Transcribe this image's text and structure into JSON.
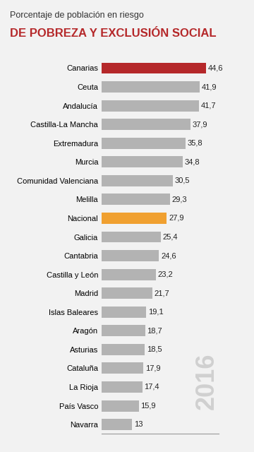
{
  "chart_data": {
    "type": "bar",
    "orientation": "horizontal",
    "subtitle": "Porcentaje de población en riesgo",
    "title": "DE POBREZA Y EXCLUSIÓN SOCIAL",
    "annotation": "2016",
    "categories": [
      "Canarias",
      "Ceuta",
      "Andalucía",
      "Castilla-La Mancha",
      "Extremadura",
      "Murcia",
      "Comunidad Valenciana",
      "Melilla",
      "Nacional",
      "Galicia",
      "Cantabria",
      "Castilla y León",
      "Madrid",
      "Islas Baleares",
      "Aragón",
      "Asturias",
      "Cataluña",
      "La Rioja",
      "País Vasco",
      "Navarra"
    ],
    "values": [
      44.6,
      41.9,
      41.7,
      37.9,
      35.8,
      34.8,
      30.5,
      29.3,
      27.9,
      25.4,
      24.6,
      23.2,
      21.7,
      19.1,
      18.7,
      18.5,
      17.9,
      17.4,
      15.9,
      13
    ],
    "value_labels": [
      "44,6",
      "41,9",
      "41,7",
      "37,9",
      "35,8",
      "34,8",
      "30,5",
      "29,3",
      "27,9",
      "25,4",
      "24,6",
      "23,2",
      "21,7",
      "19,1",
      "18,7",
      "18,5",
      "17,9",
      "17,4",
      "15,9",
      "13"
    ],
    "colors": [
      "#b5282a",
      "#b3b3b3",
      "#b3b3b3",
      "#b3b3b3",
      "#b3b3b3",
      "#b3b3b3",
      "#b3b3b3",
      "#b3b3b3",
      "#f0a030",
      "#b3b3b3",
      "#b3b3b3",
      "#b3b3b3",
      "#b3b3b3",
      "#b3b3b3",
      "#b3b3b3",
      "#b3b3b3",
      "#b3b3b3",
      "#b3b3b3",
      "#b3b3b3",
      "#b3b3b3"
    ],
    "xlim": [
      0,
      50
    ],
    "xticks": [],
    "data_labels": true,
    "tick_labels": "y",
    "grid": false
  }
}
